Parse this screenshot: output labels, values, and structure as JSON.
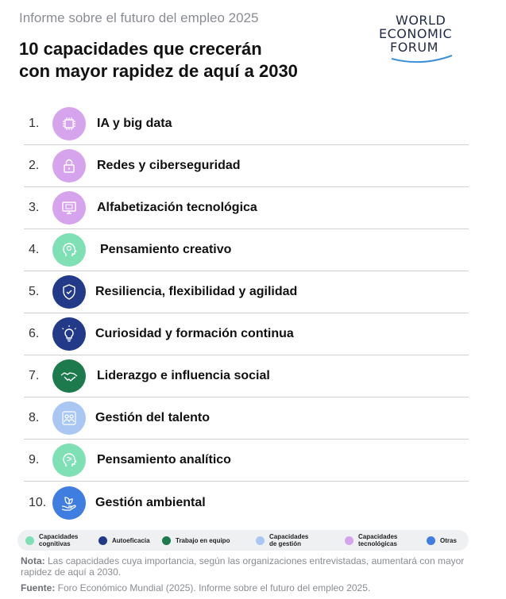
{
  "header": {
    "report_title": "Informe sobre el futuro del empleo 2025",
    "title_line1": "10 capacidades que crecerán",
    "title_line2": "con mayor rapidez de aquí a 2030"
  },
  "logo": {
    "line1": "WORLD",
    "line2": "ECONOMIC",
    "line3": "FORUM",
    "color": "#1f2a44"
  },
  "skills": [
    {
      "num": "1.",
      "label": "IA y big data",
      "color": "#d6a4ec",
      "icon": "ai-chip-icon"
    },
    {
      "num": "2.",
      "label": "Redes y ciberseguridad",
      "color": "#d6a4ec",
      "icon": "lock-icon"
    },
    {
      "num": "3.",
      "label": "Alfabetización tecnológica",
      "color": "#d6a4ec",
      "icon": "monitor-icon"
    },
    {
      "num": "4.",
      "label": "Pensamiento creativo",
      "color": "#7fdfb5",
      "icon": "head-icon"
    },
    {
      "num": "5.",
      "label": "Resiliencia, flexibilidad y agilidad",
      "color": "#223a87",
      "icon": "shield-icon"
    },
    {
      "num": "6.",
      "label": "Curiosidad y formación continua",
      "color": "#223a87",
      "icon": "lightbulb-icon"
    },
    {
      "num": "7.",
      "label": "Liderazgo e influencia social",
      "color": "#1d7a4c",
      "icon": "handshake-icon"
    },
    {
      "num": "8.",
      "label": "Gestión del talento",
      "color": "#a9c7f2",
      "icon": "team-icon"
    },
    {
      "num": "9.",
      "label": "Pensamiento analítico",
      "color": "#7fdfb5",
      "icon": "brain-icon"
    },
    {
      "num": "10.",
      "label": "Gestión ambiental",
      "color": "#3f7de0",
      "icon": "leaf-hand-icon"
    }
  ],
  "legend": [
    {
      "label": "Capacidades\ncognitivas",
      "color": "#7fdfb5"
    },
    {
      "label": "Autoeficacia",
      "color": "#223a87"
    },
    {
      "label": "Trabajo en equipo",
      "color": "#1d7a4c"
    },
    {
      "label": "Capacidades\nde gestión",
      "color": "#a9c7f2"
    },
    {
      "label": "Capacidades\ntecnológicas",
      "color": "#d6a4ec"
    },
    {
      "label": "Otras",
      "color": "#3f7de0"
    }
  ],
  "footer": {
    "note_label": "Nota:",
    "note_text": " Las capacidades cuya importancia, según las organizaciones entrevistadas, aumentará con mayor rapidez de aquí a 2030.",
    "source_label": "Fuente:",
    "source_text": " Foro Económico Mundial (2025). Informe sobre el futuro del empleo 2025."
  }
}
